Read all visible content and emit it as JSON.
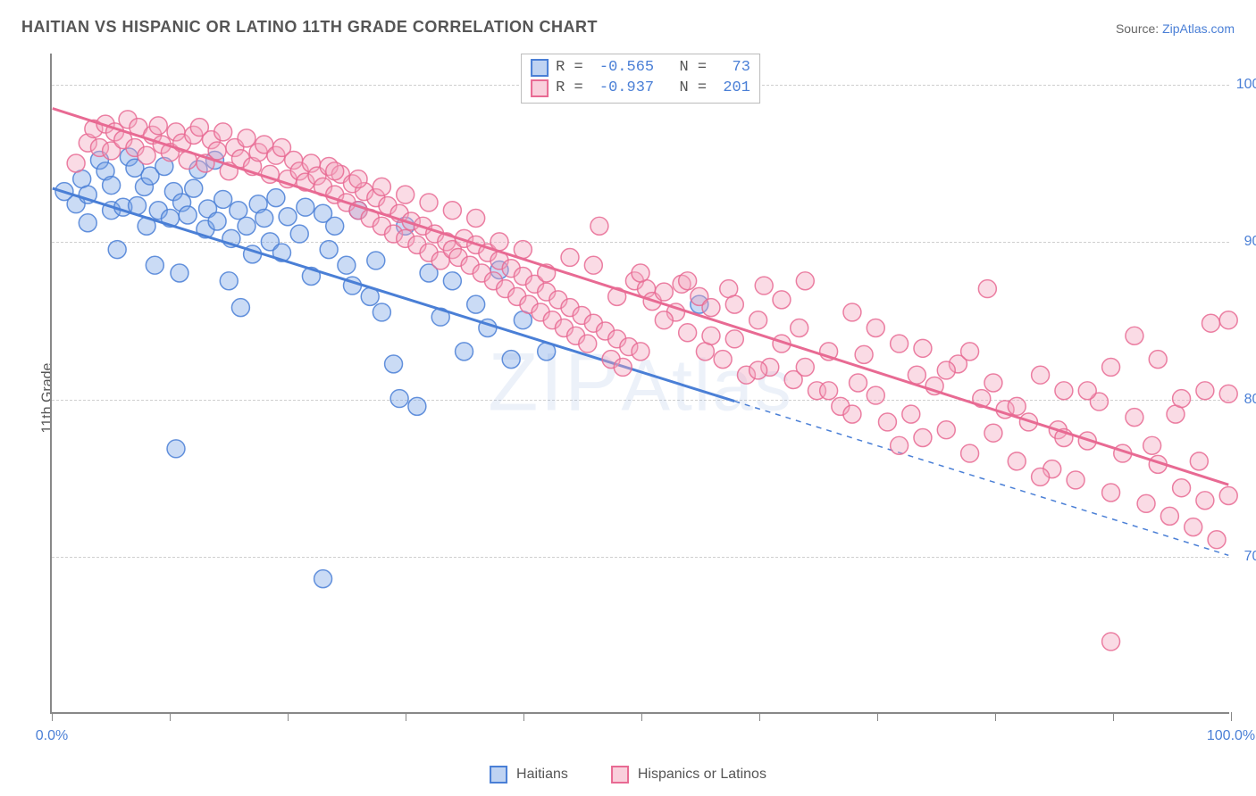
{
  "title": "HAITIAN VS HISPANIC OR LATINO 11TH GRADE CORRELATION CHART",
  "source": {
    "label": "Source: ",
    "name": "ZipAtlas.com"
  },
  "ylabel": "11th Grade",
  "watermark": "ZIPAtlas",
  "chart": {
    "type": "scatter",
    "xlim": [
      0,
      100
    ],
    "ylim": [
      60,
      102
    ],
    "gridlines_y": [
      70,
      80,
      90,
      100
    ],
    "ytick_labels": {
      "70": "70.0%",
      "80": "80.0%",
      "90": "90.0%",
      "100": "100.0%"
    },
    "xticks": [
      0,
      10,
      20,
      30,
      40,
      50,
      60,
      70,
      80,
      90,
      100
    ],
    "xtick_labels": {
      "0": "0.0%",
      "100": "100.0%"
    },
    "grid_color": "#cfcfcf",
    "axis_color": "#888888",
    "background_color": "#ffffff",
    "marker_radius": 10,
    "marker_opacity": 0.4,
    "marker_stroke_opacity": 0.85,
    "line_width": 3,
    "series": [
      {
        "name": "Haitians",
        "color_fill": "#7ba6e6",
        "color_stroke": "#4a7fd6",
        "R": "-0.565",
        "N": "73",
        "trend": {
          "x1": 0,
          "y1": 93.4,
          "x2": 58,
          "y2": 79.8,
          "solid_to_x": 58,
          "dash_to_x": 100,
          "dash_y2": 70.0
        },
        "legend_swatch_fill": "#bfd3f2",
        "legend_swatch_stroke": "#4a7fd6",
        "pts": [
          [
            1,
            93.2
          ],
          [
            2,
            92.4
          ],
          [
            2.5,
            94.0
          ],
          [
            3,
            91.2
          ],
          [
            3,
            93.0
          ],
          [
            4,
            95.2
          ],
          [
            4.5,
            94.5
          ],
          [
            5,
            92.0
          ],
          [
            5,
            93.6
          ],
          [
            5.5,
            89.5
          ],
          [
            6,
            92.2
          ],
          [
            6.5,
            95.4
          ],
          [
            7,
            94.7
          ],
          [
            7.2,
            92.3
          ],
          [
            7.8,
            93.5
          ],
          [
            8,
            91.0
          ],
          [
            8.3,
            94.2
          ],
          [
            8.7,
            88.5
          ],
          [
            9,
            92.0
          ],
          [
            9.5,
            94.8
          ],
          [
            10,
            91.5
          ],
          [
            10.3,
            93.2
          ],
          [
            10.8,
            88.0
          ],
          [
            11,
            92.5
          ],
          [
            11.5,
            91.7
          ],
          [
            12,
            93.4
          ],
          [
            12.4,
            94.6
          ],
          [
            13,
            90.8
          ],
          [
            13.2,
            92.1
          ],
          [
            13.8,
            95.2
          ],
          [
            14,
            91.3
          ],
          [
            14.5,
            92.7
          ],
          [
            15,
            87.5
          ],
          [
            15.2,
            90.2
          ],
          [
            15.8,
            92.0
          ],
          [
            16,
            85.8
          ],
          [
            16.5,
            91.0
          ],
          [
            17,
            89.2
          ],
          [
            17.5,
            92.4
          ],
          [
            18,
            91.5
          ],
          [
            18.5,
            90.0
          ],
          [
            19,
            92.8
          ],
          [
            19.5,
            89.3
          ],
          [
            20,
            91.6
          ],
          [
            10.5,
            76.8
          ],
          [
            21,
            90.5
          ],
          [
            21.5,
            92.2
          ],
          [
            22,
            87.8
          ],
          [
            23,
            91.8
          ],
          [
            23.5,
            89.5
          ],
          [
            24,
            91.0
          ],
          [
            25,
            88.5
          ],
          [
            25.5,
            87.2
          ],
          [
            26,
            92.0
          ],
          [
            27,
            86.5
          ],
          [
            27.5,
            88.8
          ],
          [
            28,
            85.5
          ],
          [
            29,
            82.2
          ],
          [
            29.5,
            80.0
          ],
          [
            30,
            91.0
          ],
          [
            31,
            79.5
          ],
          [
            32,
            88.0
          ],
          [
            33,
            85.2
          ],
          [
            34,
            87.5
          ],
          [
            35,
            83.0
          ],
          [
            36,
            86.0
          ],
          [
            37,
            84.5
          ],
          [
            38,
            88.2
          ],
          [
            39,
            82.5
          ],
          [
            40,
            85.0
          ],
          [
            23,
            68.5
          ],
          [
            55,
            86.0
          ],
          [
            42,
            83.0
          ]
        ]
      },
      {
        "name": "Hispanics or Latinos",
        "color_fill": "#f3a6bd",
        "color_stroke": "#e86a93",
        "R": "-0.937",
        "N": "201",
        "trend": {
          "x1": 0,
          "y1": 98.5,
          "x2": 100,
          "y2": 74.5,
          "solid_to_x": 100
        },
        "legend_swatch_fill": "#f9d0dc",
        "legend_swatch_stroke": "#e86a93",
        "pts": [
          [
            2,
            95.0
          ],
          [
            3,
            96.3
          ],
          [
            3.5,
            97.2
          ],
          [
            4,
            96.0
          ],
          [
            4.5,
            97.5
          ],
          [
            5,
            95.8
          ],
          [
            5.3,
            97.0
          ],
          [
            6,
            96.5
          ],
          [
            6.4,
            97.8
          ],
          [
            7,
            96.0
          ],
          [
            7.3,
            97.3
          ],
          [
            8,
            95.5
          ],
          [
            8.5,
            96.8
          ],
          [
            9,
            97.4
          ],
          [
            9.3,
            96.2
          ],
          [
            10,
            95.7
          ],
          [
            10.5,
            97.0
          ],
          [
            11,
            96.3
          ],
          [
            11.5,
            95.2
          ],
          [
            12,
            96.8
          ],
          [
            12.5,
            97.3
          ],
          [
            13,
            95.0
          ],
          [
            13.5,
            96.5
          ],
          [
            14,
            95.8
          ],
          [
            14.5,
            97.0
          ],
          [
            15,
            94.5
          ],
          [
            15.5,
            96.0
          ],
          [
            16,
            95.3
          ],
          [
            16.5,
            96.6
          ],
          [
            17,
            94.8
          ],
          [
            17.5,
            95.7
          ],
          [
            18,
            96.2
          ],
          [
            18.5,
            94.3
          ],
          [
            19,
            95.5
          ],
          [
            19.5,
            96.0
          ],
          [
            20,
            94.0
          ],
          [
            20.5,
            95.2
          ],
          [
            21,
            94.5
          ],
          [
            21.5,
            93.8
          ],
          [
            22,
            95.0
          ],
          [
            22.5,
            94.2
          ],
          [
            23,
            93.5
          ],
          [
            23.5,
            94.8
          ],
          [
            24,
            93.0
          ],
          [
            24.5,
            94.3
          ],
          [
            25,
            92.5
          ],
          [
            25.5,
            93.7
          ],
          [
            26,
            92.0
          ],
          [
            26.5,
            93.2
          ],
          [
            27,
            91.5
          ],
          [
            27.5,
            92.8
          ],
          [
            28,
            91.0
          ],
          [
            28.5,
            92.3
          ],
          [
            29,
            90.5
          ],
          [
            29.5,
            91.8
          ],
          [
            30,
            90.2
          ],
          [
            30.5,
            91.3
          ],
          [
            31,
            89.8
          ],
          [
            31.5,
            91.0
          ],
          [
            32,
            89.3
          ],
          [
            32.5,
            90.5
          ],
          [
            33,
            88.8
          ],
          [
            33.5,
            90.0
          ],
          [
            34,
            89.5
          ],
          [
            34.5,
            89.0
          ],
          [
            35,
            90.2
          ],
          [
            35.5,
            88.5
          ],
          [
            36,
            89.8
          ],
          [
            36.5,
            88.0
          ],
          [
            37,
            89.3
          ],
          [
            37.5,
            87.5
          ],
          [
            38,
            88.8
          ],
          [
            38.5,
            87.0
          ],
          [
            39,
            88.3
          ],
          [
            39.5,
            86.5
          ],
          [
            40,
            87.8
          ],
          [
            40.5,
            86.0
          ],
          [
            41,
            87.3
          ],
          [
            41.5,
            85.5
          ],
          [
            42,
            86.8
          ],
          [
            42.5,
            85.0
          ],
          [
            43,
            86.3
          ],
          [
            43.5,
            84.5
          ],
          [
            44,
            85.8
          ],
          [
            44.5,
            84.0
          ],
          [
            45,
            85.3
          ],
          [
            45.5,
            83.5
          ],
          [
            46,
            84.8
          ],
          [
            46.5,
            91.0
          ],
          [
            47,
            84.3
          ],
          [
            47.5,
            82.5
          ],
          [
            48,
            83.8
          ],
          [
            48.5,
            82.0
          ],
          [
            49,
            83.3
          ],
          [
            49.5,
            87.5
          ],
          [
            50,
            83.0
          ],
          [
            50.5,
            87.0
          ],
          [
            51,
            86.2
          ],
          [
            52,
            86.8
          ],
          [
            53,
            85.5
          ],
          [
            53.5,
            87.3
          ],
          [
            54,
            84.2
          ],
          [
            55,
            86.5
          ],
          [
            55.5,
            83.0
          ],
          [
            56,
            85.8
          ],
          [
            57,
            82.5
          ],
          [
            57.5,
            87.0
          ],
          [
            58,
            83.8
          ],
          [
            59,
            81.5
          ],
          [
            60,
            85.0
          ],
          [
            60.5,
            87.2
          ],
          [
            61,
            82.0
          ],
          [
            62,
            86.3
          ],
          [
            63,
            81.2
          ],
          [
            63.5,
            84.5
          ],
          [
            64,
            87.5
          ],
          [
            65,
            80.5
          ],
          [
            66,
            83.0
          ],
          [
            67,
            79.5
          ],
          [
            68,
            85.5
          ],
          [
            68.5,
            81.0
          ],
          [
            69,
            82.8
          ],
          [
            70,
            80.2
          ],
          [
            71,
            78.5
          ],
          [
            72,
            83.5
          ],
          [
            73,
            79.0
          ],
          [
            73.5,
            81.5
          ],
          [
            74,
            77.5
          ],
          [
            75,
            80.8
          ],
          [
            76,
            78.0
          ],
          [
            77,
            82.2
          ],
          [
            78,
            76.5
          ],
          [
            79,
            80.0
          ],
          [
            79.5,
            87.0
          ],
          [
            80,
            77.8
          ],
          [
            81,
            79.3
          ],
          [
            82,
            76.0
          ],
          [
            83,
            78.5
          ],
          [
            84,
            81.5
          ],
          [
            85,
            75.5
          ],
          [
            85.5,
            78.0
          ],
          [
            86,
            80.5
          ],
          [
            87,
            74.8
          ],
          [
            88,
            77.3
          ],
          [
            89,
            79.8
          ],
          [
            90,
            74.0
          ],
          [
            91,
            76.5
          ],
          [
            92,
            78.8
          ],
          [
            93,
            73.3
          ],
          [
            93.5,
            77.0
          ],
          [
            94,
            75.8
          ],
          [
            95,
            72.5
          ],
          [
            95.5,
            79.0
          ],
          [
            96,
            74.3
          ],
          [
            97,
            71.8
          ],
          [
            97.5,
            76.0
          ],
          [
            98,
            73.5
          ],
          [
            98.5,
            84.8
          ],
          [
            99,
            71.0
          ],
          [
            100,
            73.8
          ],
          [
            100,
            85.0
          ],
          [
            100,
            80.3
          ],
          [
            98,
            80.5
          ],
          [
            96,
            80.0
          ],
          [
            94,
            82.5
          ],
          [
            92,
            84.0
          ],
          [
            90,
            82.0
          ],
          [
            88,
            80.5
          ],
          [
            86,
            77.5
          ],
          [
            84,
            75.0
          ],
          [
            82,
            79.5
          ],
          [
            80,
            81.0
          ],
          [
            78,
            83.0
          ],
          [
            76,
            81.8
          ],
          [
            74,
            83.2
          ],
          [
            72,
            77.0
          ],
          [
            70,
            84.5
          ],
          [
            68,
            79.0
          ],
          [
            66,
            80.5
          ],
          [
            64,
            82.0
          ],
          [
            62,
            83.5
          ],
          [
            60,
            81.8
          ],
          [
            58,
            86.0
          ],
          [
            56,
            84.0
          ],
          [
            54,
            87.5
          ],
          [
            52,
            85.0
          ],
          [
            50,
            88.0
          ],
          [
            48,
            86.5
          ],
          [
            46,
            88.5
          ],
          [
            44,
            89.0
          ],
          [
            42,
            88.0
          ],
          [
            40,
            89.5
          ],
          [
            38,
            90.0
          ],
          [
            36,
            91.5
          ],
          [
            34,
            92.0
          ],
          [
            32,
            92.5
          ],
          [
            30,
            93.0
          ],
          [
            28,
            93.5
          ],
          [
            26,
            94.0
          ],
          [
            24,
            94.5
          ],
          [
            90,
            64.5
          ]
        ]
      }
    ]
  },
  "bottom_legend": [
    {
      "label": "Haitians",
      "fill": "#bfd3f2",
      "stroke": "#4a7fd6"
    },
    {
      "label": "Hispanics or Latinos",
      "fill": "#f9d0dc",
      "stroke": "#e86a93"
    }
  ]
}
